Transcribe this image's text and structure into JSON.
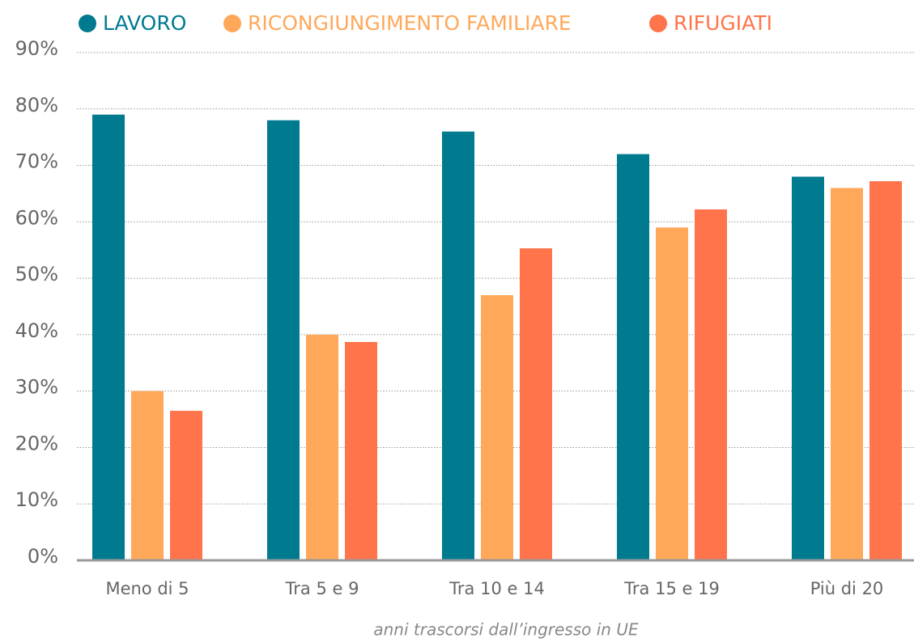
{
  "chart_data": {
    "type": "bar",
    "x_label": "anni trascorsi dall’ingresso in UE",
    "categories": [
      "Meno di 5",
      "Tra 5 e 9",
      "Tra 10 e 14",
      "Tra 15 e 19",
      "Più di 20"
    ],
    "series": [
      {
        "name": "LAVORO",
        "color": "#007a8f",
        "values": [
          79,
          78,
          76,
          72,
          68
        ]
      },
      {
        "name": "RICONGIUNGIMENTO FAMILIARE",
        "color": "#ffa85a",
        "values": [
          30,
          40,
          47,
          59,
          66
        ]
      },
      {
        "name": "RIFUGIATI",
        "color": "#ff744a",
        "values": [
          26.5,
          38.7,
          55.3,
          62.2,
          67.2
        ]
      }
    ],
    "ylim": [
      0,
      90
    ],
    "yticks": [
      {
        "value": 0,
        "label": "0%"
      },
      {
        "value": 10,
        "label": "10%"
      },
      {
        "value": 20,
        "label": "20%"
      },
      {
        "value": 30,
        "label": "30%"
      },
      {
        "value": 40,
        "label": "40%"
      },
      {
        "value": 50,
        "label": "50%"
      },
      {
        "value": 60,
        "label": "60%"
      },
      {
        "value": 70,
        "label": "70%"
      },
      {
        "value": 80,
        "label": "80%"
      },
      {
        "value": 90,
        "label": "90%"
      }
    ],
    "grid": true,
    "legend": "top"
  }
}
